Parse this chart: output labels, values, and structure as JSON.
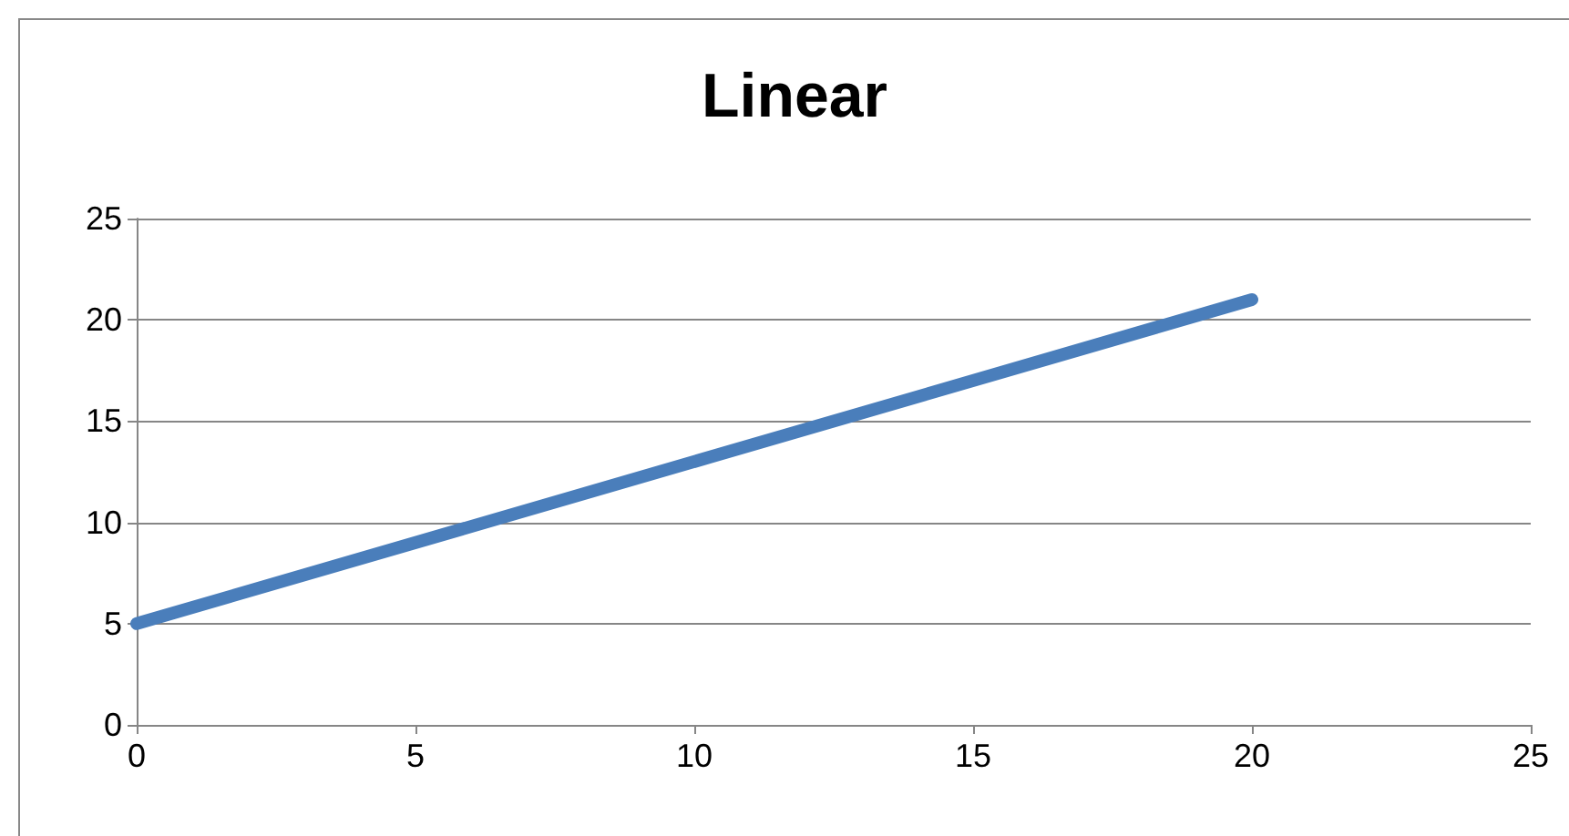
{
  "chart_data": {
    "type": "line",
    "title": "Linear",
    "x": [
      0,
      20
    ],
    "series": [
      {
        "color": "#4a7ebb",
        "values": [
          5,
          21
        ]
      }
    ],
    "xlim": [
      0,
      25
    ],
    "xticks": [
      0,
      5,
      10,
      15,
      20,
      25
    ],
    "ylim": [
      0,
      25
    ],
    "yticks": [
      0,
      5,
      10,
      15,
      20,
      25
    ],
    "grid": "y",
    "line_style": "solid"
  }
}
